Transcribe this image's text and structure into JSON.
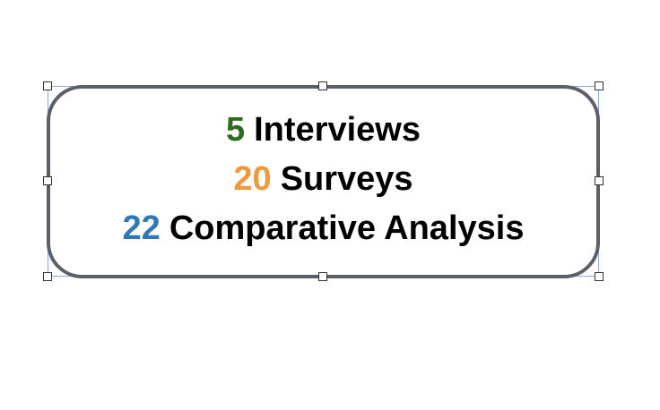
{
  "shape": {
    "lines": [
      {
        "number": "5",
        "label": "Interviews",
        "number_color": "#2e6b1f"
      },
      {
        "number": "20",
        "label": "Surveys",
        "number_color": "#f0993a"
      },
      {
        "number": "22",
        "label": "Comparative Analysis",
        "number_color": "#2f78b8"
      }
    ],
    "border_color": "#5b5f68",
    "selection_color": "#8fa9e0"
  }
}
